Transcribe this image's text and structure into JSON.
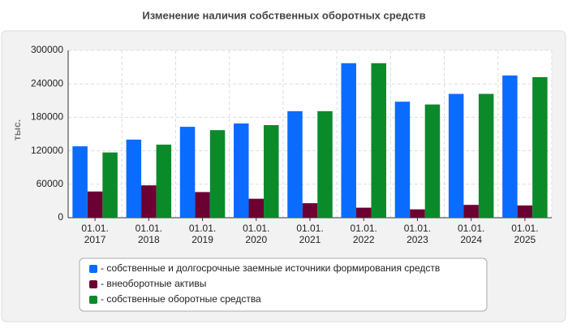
{
  "chart_data": {
    "type": "bar",
    "title": "Изменение наличия собственных оборотных средств",
    "y_label": "тыс.",
    "categories": [
      "01.01. 2017",
      "01.01. 2018",
      "01.01. 2019",
      "01.01. 2020",
      "01.01. 2021",
      "01.01. 2022",
      "01.01. 2023",
      "01.01. 2024",
      "01.01. 2025"
    ],
    "series": [
      {
        "name": "- собственные и долгосрочные заемные источники формирования средств",
        "color": "#0a6cff",
        "values": [
          128000,
          140000,
          163000,
          169000,
          191000,
          277000,
          208000,
          222000,
          255000
        ]
      },
      {
        "name": "- внеоборотные активы",
        "color": "#6b0033",
        "values": [
          47000,
          58000,
          46000,
          34000,
          26000,
          18000,
          15000,
          23000,
          22000
        ]
      },
      {
        "name": "- собственные оборотные средства",
        "color": "#0b8a2a",
        "values": [
          117000,
          131000,
          157000,
          166000,
          191000,
          277000,
          203000,
          222000,
          252000
        ]
      }
    ],
    "ylim": [
      0,
      300000
    ],
    "yticks": [
      0,
      60000,
      120000,
      180000,
      240000,
      300000
    ],
    "grid": true
  }
}
